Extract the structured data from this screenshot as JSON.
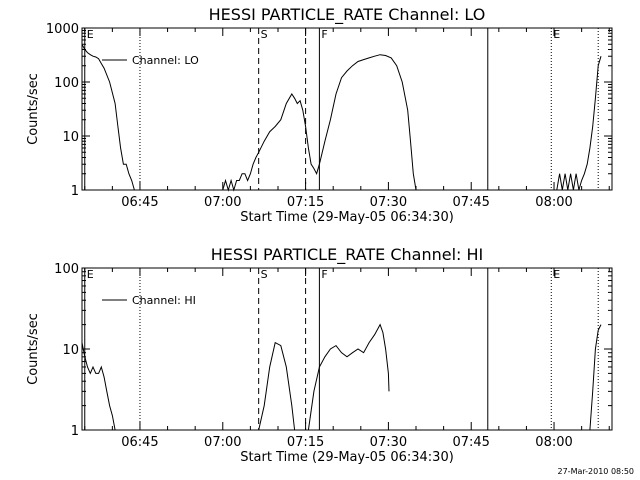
{
  "colors": {
    "background": "#ffffff",
    "foreground": "#000000"
  },
  "footer": {
    "timestamp": "27-Mar-2010 08:50"
  },
  "chart_data": [
    {
      "type": "line",
      "title": "HESSI PARTICLE_RATE Channel: LO",
      "xlabel": "Start Time (29-May-05 06:34:30)",
      "ylabel": "Counts/sec",
      "y_scale": "log",
      "grid": false,
      "legend_position": "top-left",
      "x_unit": "minutes after 06:34:30",
      "xlim": [
        0,
        96
      ],
      "ylim": [
        1,
        1000
      ],
      "xticks": [
        {
          "x": 10.5,
          "label": "06:45"
        },
        {
          "x": 25.5,
          "label": "07:00"
        },
        {
          "x": 40.5,
          "label": "07:15"
        },
        {
          "x": 55.5,
          "label": "07:30"
        },
        {
          "x": 70.5,
          "label": "07:45"
        },
        {
          "x": 85.5,
          "label": "08:00"
        }
      ],
      "yticks": [
        {
          "y": 1,
          "label": "1"
        },
        {
          "y": 10,
          "label": "10"
        },
        {
          "y": 100,
          "label": "100"
        },
        {
          "y": 1000,
          "label": "1000"
        }
      ],
      "markers": [
        {
          "label": "E",
          "x": 0.5,
          "style": "solid"
        },
        {
          "label": "",
          "x": 10.5,
          "style": "dotted"
        },
        {
          "label": "S",
          "x": 32,
          "style": "dashed"
        },
        {
          "label": "",
          "x": 40.5,
          "style": "dashed"
        },
        {
          "label": "F",
          "x": 43,
          "style": "solid"
        },
        {
          "label": "",
          "x": 73.5,
          "style": "solid"
        },
        {
          "label": "E",
          "x": 85,
          "style": "dotted"
        },
        {
          "label": "",
          "x": 93.5,
          "style": "dotted"
        }
      ],
      "series": [
        {
          "name": "Channel: LO",
          "segments": [
            [
              [
                0,
                500
              ],
              [
                0.5,
                400
              ],
              [
                1,
                350
              ],
              [
                1.5,
                320
              ],
              [
                2,
                300
              ],
              [
                2.5,
                290
              ],
              [
                3,
                270
              ],
              [
                3.5,
                220
              ],
              [
                4,
                180
              ],
              [
                5,
                100
              ],
              [
                6,
                40
              ],
              [
                6.5,
                15
              ],
              [
                7,
                6
              ],
              [
                7.5,
                3
              ],
              [
                8,
                3
              ],
              [
                8.5,
                2
              ],
              [
                9,
                1.5
              ],
              [
                9.5,
                1
              ]
            ],
            [
              [
                25.5,
                1
              ],
              [
                26,
                1.5
              ],
              [
                26.5,
                1
              ],
              [
                27,
                1.5
              ],
              [
                27.5,
                1
              ],
              [
                28,
                1.5
              ],
              [
                28.5,
                1.5
              ],
              [
                29,
                2
              ],
              [
                29.5,
                2
              ],
              [
                30,
                1.5
              ],
              [
                30.5,
                2
              ],
              [
                31,
                3
              ],
              [
                31.5,
                4
              ],
              [
                32,
                5
              ],
              [
                33,
                8
              ],
              [
                34,
                12
              ],
              [
                35,
                15
              ],
              [
                36,
                20
              ],
              [
                37,
                40
              ],
              [
                38,
                60
              ],
              [
                38.5,
                50
              ],
              [
                39,
                40
              ],
              [
                39.5,
                45
              ],
              [
                40,
                30
              ],
              [
                40.5,
                15
              ],
              [
                41,
                6
              ],
              [
                41.5,
                3
              ],
              [
                42,
                2.5
              ],
              [
                42.5,
                2
              ],
              [
                43,
                3
              ],
              [
                44,
                8
              ],
              [
                45,
                20
              ],
              [
                46,
                60
              ],
              [
                47,
                120
              ],
              [
                48,
                160
              ],
              [
                49,
                200
              ],
              [
                50,
                240
              ],
              [
                51,
                260
              ],
              [
                52,
                280
              ],
              [
                53,
                300
              ],
              [
                54,
                320
              ],
              [
                55,
                310
              ],
              [
                56,
                280
              ],
              [
                57,
                200
              ],
              [
                58,
                100
              ],
              [
                59,
                30
              ],
              [
                59.5,
                8
              ],
              [
                60,
                2
              ],
              [
                60.5,
                1
              ]
            ],
            [
              [
                86,
                1
              ],
              [
                86.5,
                2
              ],
              [
                87,
                1
              ],
              [
                87.5,
                2
              ],
              [
                88,
                1
              ],
              [
                88.5,
                2
              ],
              [
                89,
                1
              ],
              [
                89.5,
                2
              ],
              [
                90,
                1
              ],
              [
                90.5,
                1.5
              ],
              [
                91,
                2
              ],
              [
                91.5,
                3
              ],
              [
                92,
                6
              ],
              [
                92.5,
                15
              ],
              [
                93,
                50
              ],
              [
                93.5,
                200
              ],
              [
                94,
                300
              ]
            ]
          ]
        }
      ]
    },
    {
      "type": "line",
      "title": "HESSI PARTICLE_RATE Channel: HI",
      "xlabel": "Start Time (29-May-05 06:34:30)",
      "ylabel": "Counts/sec",
      "y_scale": "log",
      "grid": false,
      "legend_position": "top-left",
      "x_unit": "minutes after 06:34:30",
      "xlim": [
        0,
        96
      ],
      "ylim": [
        1,
        100
      ],
      "xticks": [
        {
          "x": 10.5,
          "label": "06:45"
        },
        {
          "x": 25.5,
          "label": "07:00"
        },
        {
          "x": 40.5,
          "label": "07:15"
        },
        {
          "x": 55.5,
          "label": "07:30"
        },
        {
          "x": 70.5,
          "label": "07:45"
        },
        {
          "x": 85.5,
          "label": "08:00"
        }
      ],
      "yticks": [
        {
          "y": 1,
          "label": "1"
        },
        {
          "y": 10,
          "label": "10"
        },
        {
          "y": 100,
          "label": "100"
        }
      ],
      "markers": [
        {
          "label": "E",
          "x": 0.5,
          "style": "solid"
        },
        {
          "label": "",
          "x": 10.5,
          "style": "dotted"
        },
        {
          "label": "S",
          "x": 32,
          "style": "dashed"
        },
        {
          "label": "",
          "x": 40.5,
          "style": "dashed"
        },
        {
          "label": "F",
          "x": 43,
          "style": "solid"
        },
        {
          "label": "",
          "x": 73.5,
          "style": "solid"
        },
        {
          "label": "E",
          "x": 85,
          "style": "dotted"
        },
        {
          "label": "",
          "x": 93.5,
          "style": "dotted"
        }
      ],
      "series": [
        {
          "name": "Channel: HI",
          "segments": [
            [
              [
                0,
                12
              ],
              [
                0.5,
                8
              ],
              [
                1,
                6
              ],
              [
                1.5,
                5
              ],
              [
                2,
                6
              ],
              [
                2.5,
                5
              ],
              [
                3,
                5
              ],
              [
                3.5,
                6
              ],
              [
                4,
                4.5
              ],
              [
                4.5,
                3
              ],
              [
                5,
                2
              ],
              [
                5.5,
                1.5
              ],
              [
                6,
                1
              ]
            ],
            [
              [
                32,
                1
              ],
              [
                33,
                2
              ],
              [
                34,
                6
              ],
              [
                35,
                12
              ],
              [
                36,
                11
              ],
              [
                37,
                6
              ],
              [
                38,
                2
              ],
              [
                38.5,
                1
              ]
            ],
            [
              [
                41,
                1
              ],
              [
                42,
                3
              ],
              [
                43,
                6
              ],
              [
                44,
                8
              ],
              [
                45,
                10
              ],
              [
                46,
                11
              ],
              [
                47,
                9
              ],
              [
                48,
                8
              ],
              [
                49,
                9
              ],
              [
                50,
                10
              ],
              [
                51,
                9
              ],
              [
                52,
                12
              ],
              [
                53,
                15
              ],
              [
                54,
                20
              ],
              [
                54.5,
                16
              ],
              [
                55,
                10
              ],
              [
                55.5,
                5
              ],
              [
                55.6,
                3
              ]
            ],
            [
              [
                92,
                1
              ],
              [
                92.5,
                3
              ],
              [
                93,
                10
              ],
              [
                93.5,
                17
              ],
              [
                94,
                20
              ]
            ]
          ]
        }
      ]
    }
  ]
}
